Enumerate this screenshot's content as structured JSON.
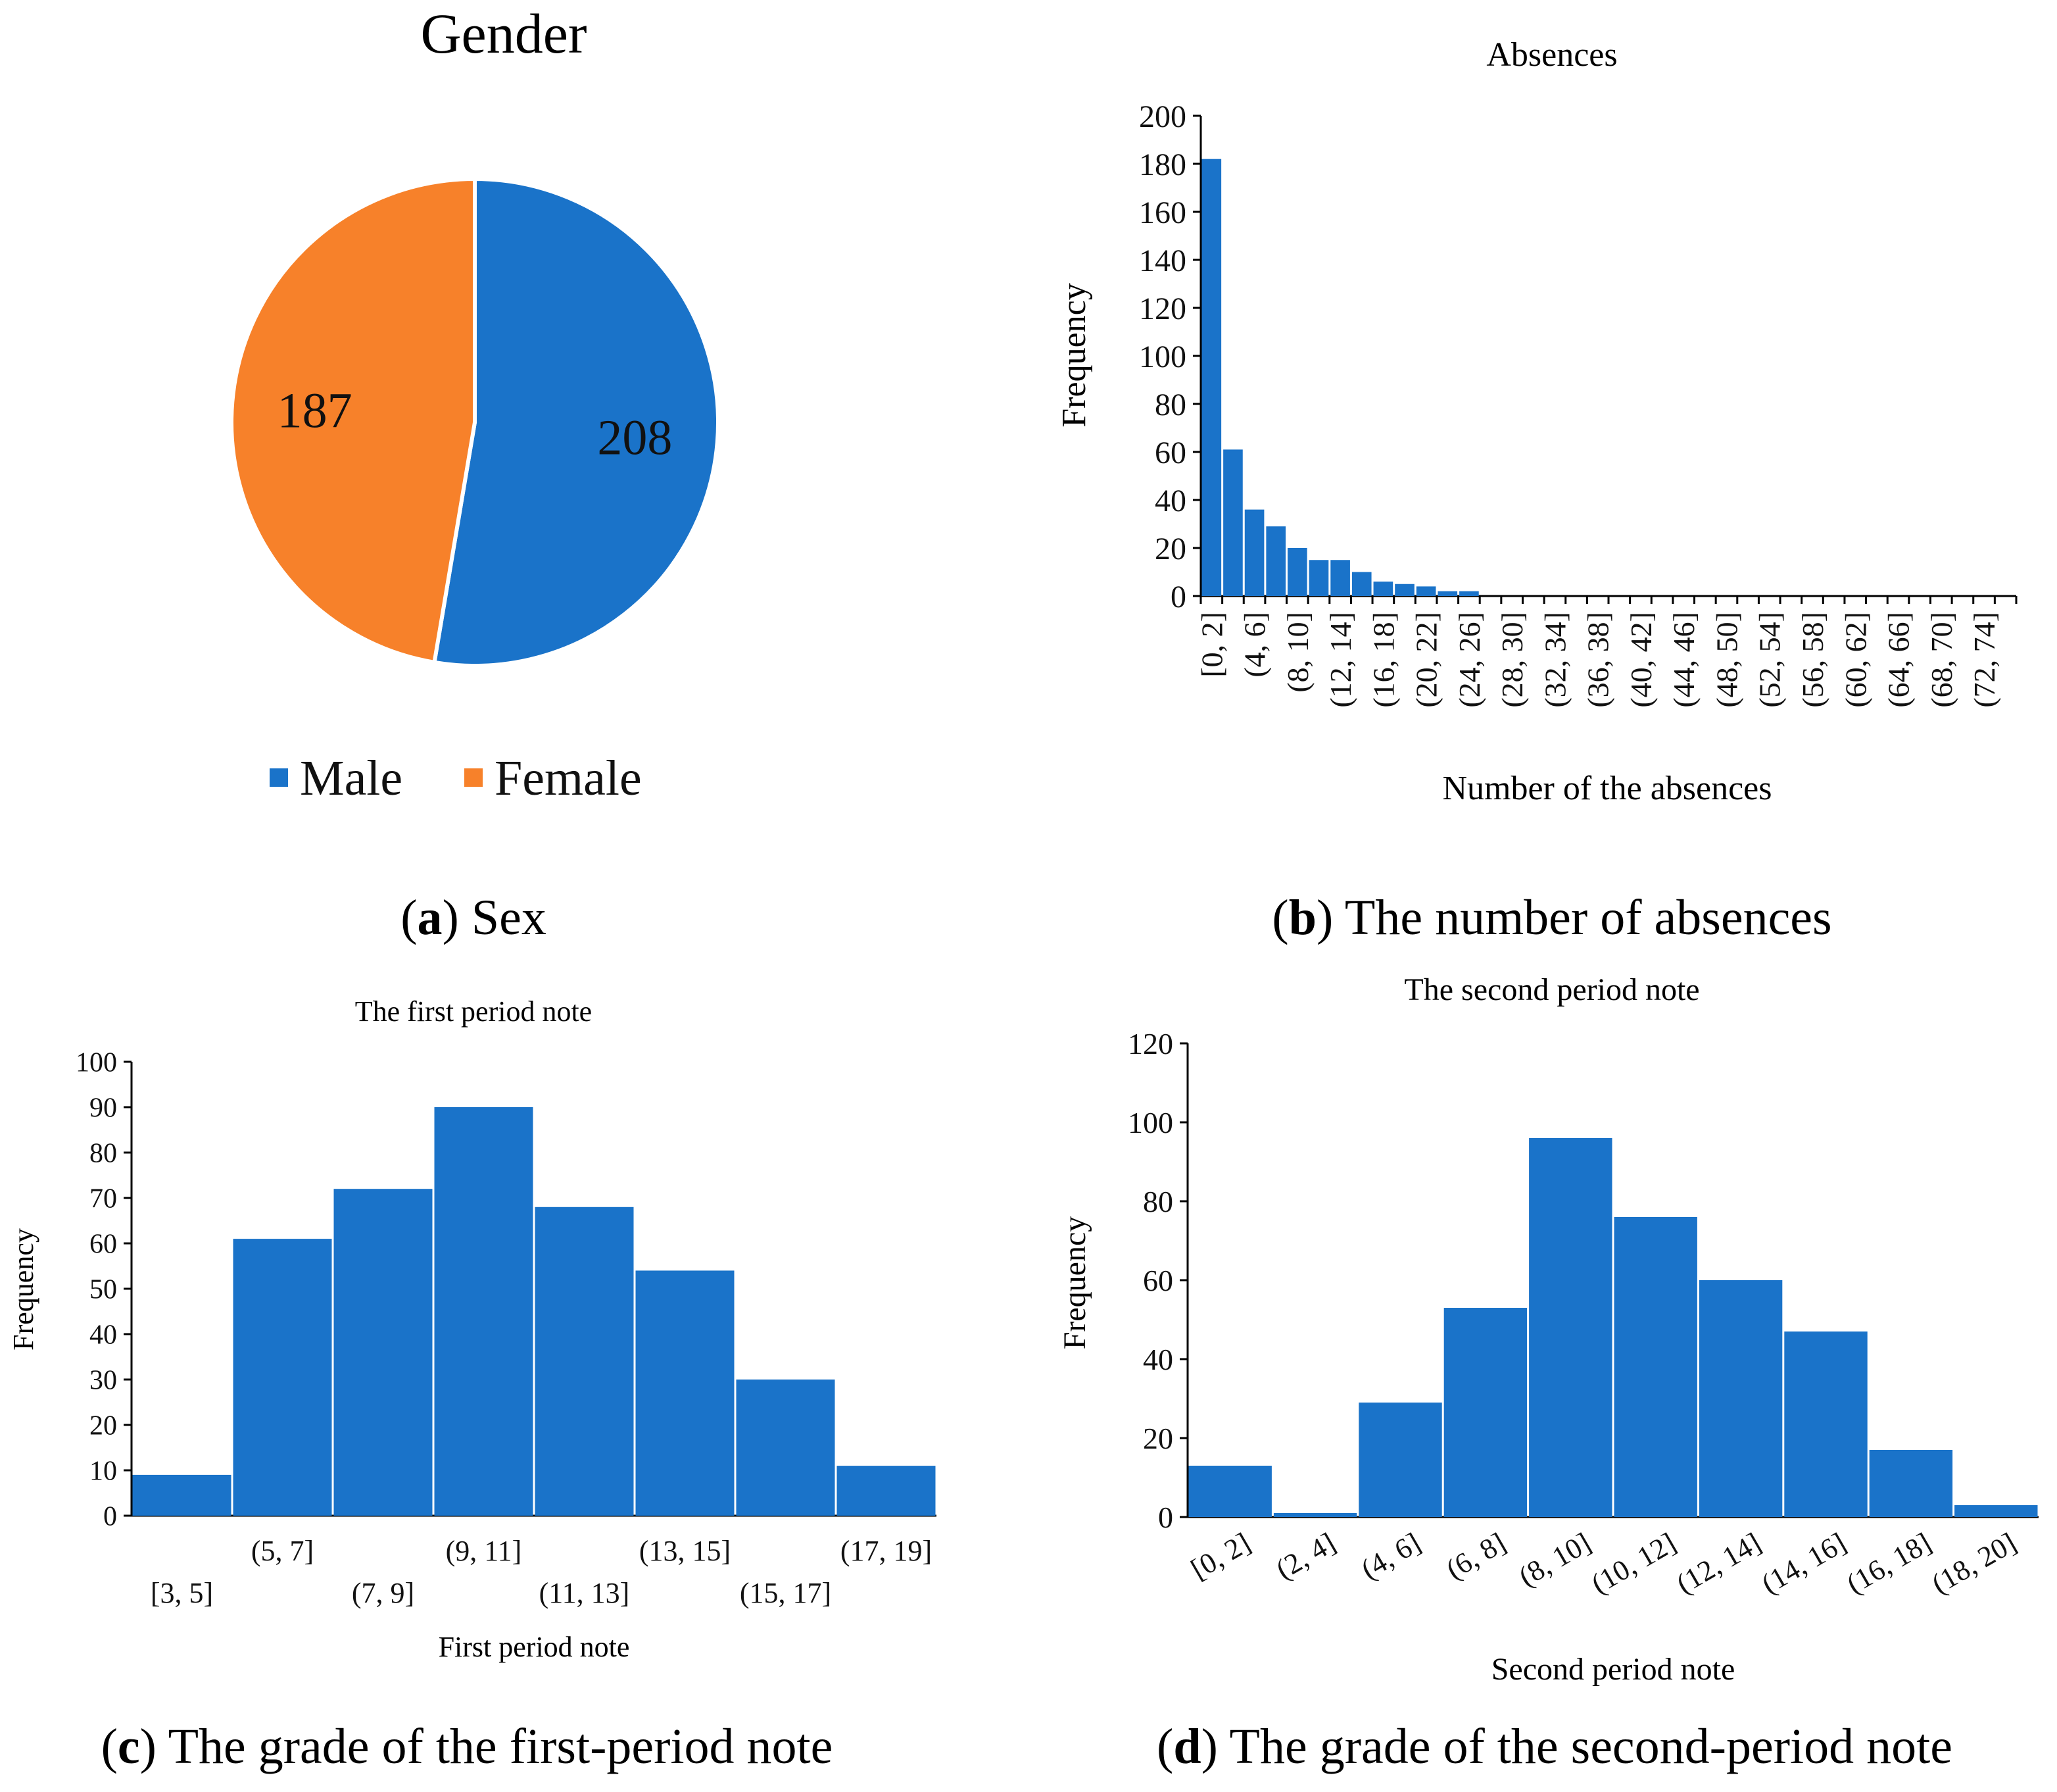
{
  "colors": {
    "blue": "#1a73c9",
    "orange": "#f7812a",
    "axis": "#000000"
  },
  "chart_data": [
    {
      "panel": "a",
      "type": "pie",
      "title": "Gender",
      "labels": [
        "Male",
        "Female"
      ],
      "values": [
        208,
        187
      ],
      "caption_letter": "a",
      "caption_text": " Sex"
    },
    {
      "panel": "b",
      "type": "bar",
      "title": "Absences",
      "xlabel": "Number of the absences",
      "ylabel": "Frequency",
      "ylim": [
        0,
        200
      ],
      "yticks": [
        0,
        20,
        40,
        60,
        80,
        100,
        120,
        140,
        160,
        180,
        200
      ],
      "values": [
        182,
        61,
        36,
        29,
        20,
        15,
        15,
        10,
        6,
        5,
        4,
        2,
        2,
        0,
        0,
        0,
        0,
        0,
        0,
        0,
        0,
        0,
        0,
        0,
        0,
        0,
        0,
        0,
        0,
        0,
        0,
        0,
        0,
        0,
        0,
        0,
        0,
        0
      ],
      "tick_labels": [
        "[0, 2]",
        "(4, 6]",
        "(8, 10]",
        "(12, 14]",
        "(16, 18]",
        "(20, 22]",
        "(24, 26]",
        "(28, 30]",
        "(32, 34]",
        "(36, 38]",
        "(40, 42]",
        "(44, 46]",
        "(48, 50]",
        "(52, 54]",
        "(56, 58]",
        "(60, 62]",
        "(64, 66]",
        "(68, 70]",
        "(72, 74]"
      ],
      "caption_letter": "b",
      "caption_text": " The number of absences"
    },
    {
      "panel": "c",
      "type": "bar",
      "title": "The first period note",
      "xlabel": "First period note",
      "ylabel": "Frequency",
      "ylim": [
        0,
        100
      ],
      "yticks": [
        0,
        10,
        20,
        30,
        40,
        50,
        60,
        70,
        80,
        90,
        100
      ],
      "categories": [
        "[3, 5]",
        "(5, 7]",
        "(7, 9]",
        "(9, 11]",
        "(11, 13]",
        "(13, 15]",
        "(15, 17]",
        "(17, 19]"
      ],
      "values": [
        9,
        61,
        72,
        90,
        68,
        54,
        30,
        11
      ],
      "caption_letter": "c",
      "caption_text": " The grade of the first-period note"
    },
    {
      "panel": "d",
      "type": "bar",
      "title": "The second period note",
      "xlabel": "Second period note",
      "ylabel": "Frequency",
      "ylim": [
        0,
        120
      ],
      "yticks": [
        0,
        20,
        40,
        60,
        80,
        100,
        120
      ],
      "categories": [
        "[0, 2]",
        "(2, 4]",
        "(4, 6]",
        "(6, 8]",
        "(8, 10]",
        "(10, 12]",
        "(12, 14]",
        "(14, 16]",
        "(16, 18]",
        "(18, 20]"
      ],
      "values": [
        13,
        1,
        29,
        53,
        96,
        76,
        60,
        47,
        17,
        3
      ],
      "caption_letter": "d",
      "caption_text": " The grade of the second-period note"
    }
  ]
}
